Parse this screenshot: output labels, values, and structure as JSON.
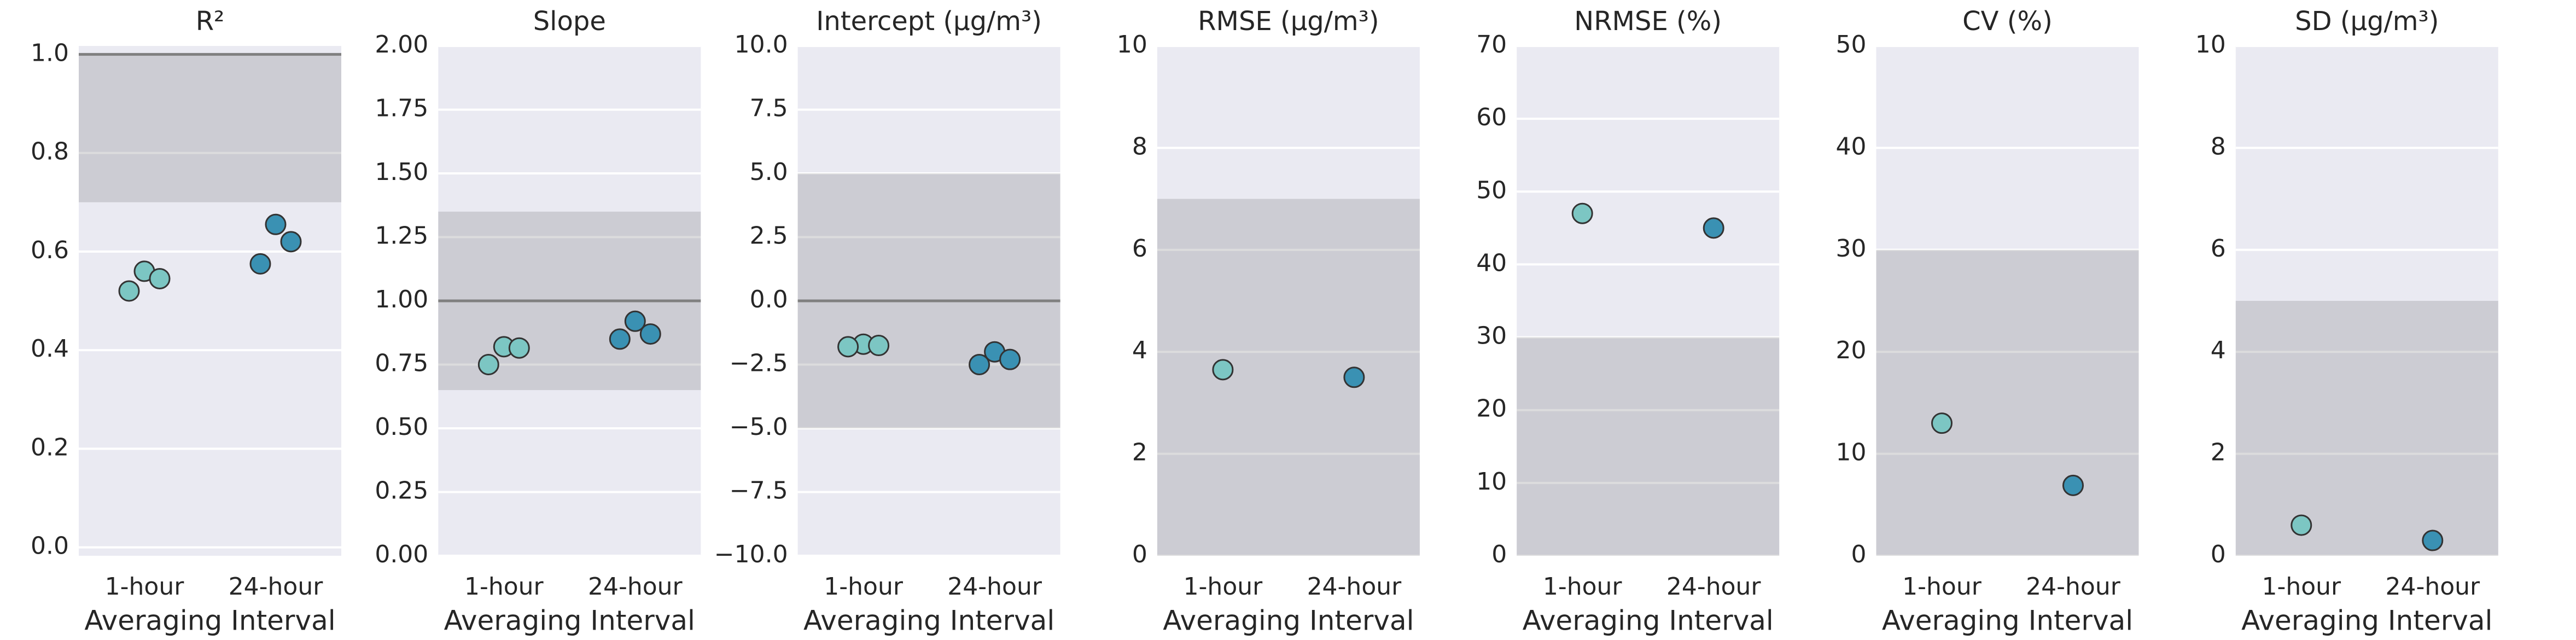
{
  "chart_data": [
    {
      "type": "strip",
      "title": "R²",
      "xlabel": "Averaging Interval",
      "categories": [
        "1-hour",
        "24-hour"
      ],
      "values": [
        [
          0.56,
          0.545,
          0.52
        ],
        [
          0.655,
          0.62,
          0.575
        ]
      ],
      "colors": [
        "#7cc6c3",
        "#3a91b3"
      ],
      "target_range": [
        0.7,
        1.0
      ],
      "reference_line": 1.0,
      "band_color": "#6d6d72",
      "ylim": [
        -0.017,
        1.017
      ],
      "yticks": [
        {
          "value": 0,
          "label": "0.0"
        },
        0.2,
        0.4,
        0.6,
        0.8,
        {
          "value": 1,
          "label": "1.0"
        }
      ],
      "grid": true
    },
    {
      "type": "strip",
      "title": "Slope",
      "xlabel": "Averaging Interval",
      "categories": [
        "1-hour",
        "24-hour"
      ],
      "values": [
        [
          0.82,
          0.815,
          0.75
        ],
        [
          0.92,
          0.87,
          0.85
        ]
      ],
      "colors": [
        "#7cc6c3",
        "#3a91b3"
      ],
      "target_range": [
        0.65,
        1.35
      ],
      "reference_line": 1.0,
      "band_color": "#6d6d72",
      "ylim": [
        0,
        2
      ],
      "yticks": [
        {
          "value": 0,
          "label": "0.00"
        },
        {
          "value": 0.25,
          "label": "0.25"
        },
        {
          "value": 0.5,
          "label": "0.50"
        },
        {
          "value": 0.75,
          "label": "0.75"
        },
        {
          "value": 1,
          "label": "1.00"
        },
        {
          "value": 1.25,
          "label": "1.25"
        },
        {
          "value": 1.5,
          "label": "1.50"
        },
        {
          "value": 1.75,
          "label": "1.75"
        },
        {
          "value": 2,
          "label": "2.00"
        }
      ],
      "grid": true
    },
    {
      "type": "strip",
      "title": "Intercept (μg/m³)",
      "xlabel": "Averaging Interval",
      "categories": [
        "1-hour",
        "24-hour"
      ],
      "values": [
        [
          -1.7,
          -1.75,
          -1.8
        ],
        [
          -2.0,
          -2.3,
          -2.5
        ]
      ],
      "colors": [
        "#7cc6c3",
        "#3a91b3"
      ],
      "target_range": [
        -5,
        5
      ],
      "reference_line": 0,
      "band_color": "#6d6d72",
      "ylim": [
        -10,
        10
      ],
      "yticks": [
        {
          "value": -10,
          "label": "−10.0"
        },
        {
          "value": -7.5,
          "label": "−7.5"
        },
        {
          "value": -5,
          "label": "−5.0"
        },
        {
          "value": -2.5,
          "label": "−2.5"
        },
        {
          "value": 0,
          "label": "0.0"
        },
        2.5,
        {
          "value": 5,
          "label": "5.0"
        },
        7.5,
        {
          "value": 10,
          "label": "10.0"
        }
      ],
      "grid": true
    },
    {
      "type": "strip",
      "title": "RMSE (μg/m³)",
      "xlabel": "Averaging Interval",
      "categories": [
        "1-hour",
        "24-hour"
      ],
      "values": [
        [
          3.65
        ],
        [
          3.5
        ]
      ],
      "colors": [
        "#7cc6c3",
        "#3a91b3"
      ],
      "target_range": [
        0,
        7
      ],
      "band_color": "#6d6d72",
      "ylim": [
        0,
        10
      ],
      "yticks": [
        0,
        2,
        4,
        6,
        8,
        10
      ],
      "grid": true
    },
    {
      "type": "strip",
      "title": "NRMSE (%)",
      "xlabel": "Averaging Interval",
      "categories": [
        "1-hour",
        "24-hour"
      ],
      "values": [
        [
          47
        ],
        [
          45
        ]
      ],
      "colors": [
        "#7cc6c3",
        "#3a91b3"
      ],
      "target_range": [
        0,
        30
      ],
      "band_color": "#6d6d72",
      "ylim": [
        0,
        70
      ],
      "yticks": [
        0,
        10,
        20,
        30,
        40,
        50,
        60,
        70
      ],
      "grid": true
    },
    {
      "type": "strip",
      "title": "CV (%)",
      "xlabel": "Averaging Interval",
      "categories": [
        "1-hour",
        "24-hour"
      ],
      "values": [
        [
          13
        ],
        [
          6.9
        ]
      ],
      "colors": [
        "#7cc6c3",
        "#3a91b3"
      ],
      "target_range": [
        0,
        30
      ],
      "band_color": "#6d6d72",
      "ylim": [
        0,
        50
      ],
      "yticks": [
        0,
        10,
        20,
        30,
        40,
        50
      ],
      "grid": true
    },
    {
      "type": "strip",
      "title": "SD (μg/m³)",
      "xlabel": "Averaging Interval",
      "categories": [
        "1-hour",
        "24-hour"
      ],
      "values": [
        [
          0.6
        ],
        [
          0.3
        ]
      ],
      "colors": [
        "#7cc6c3",
        "#3a91b3"
      ],
      "target_range": [
        0,
        5
      ],
      "band_color": "#6d6d72",
      "ylim": [
        0,
        10
      ],
      "yticks": [
        0,
        2,
        4,
        6,
        8,
        10
      ],
      "grid": true
    }
  ]
}
